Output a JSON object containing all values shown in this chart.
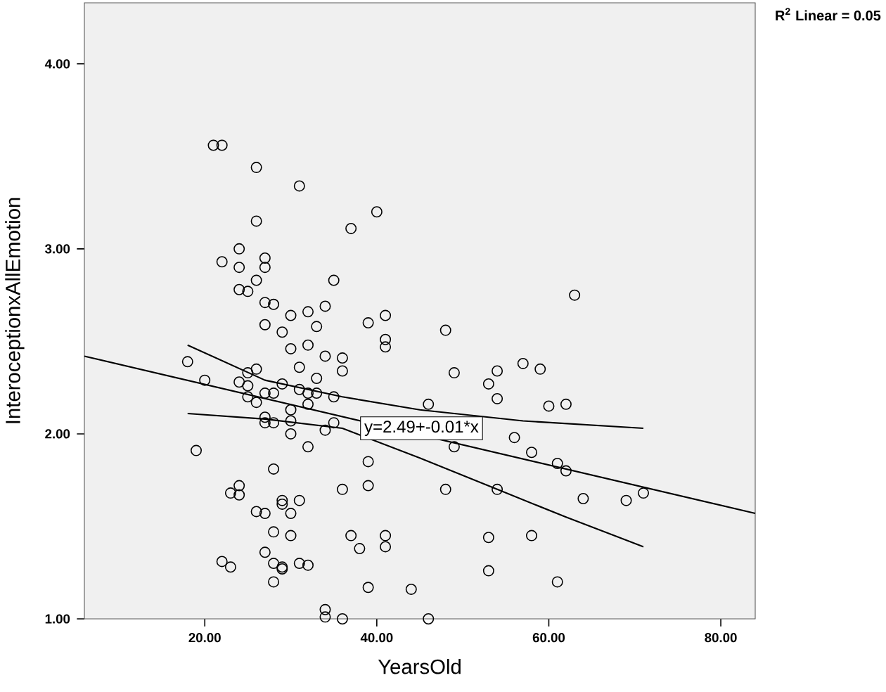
{
  "chart_data": {
    "type": "scatter",
    "xlabel": "YearsOld",
    "ylabel": "InteroceptionxAllEmotion",
    "xlim": [
      6,
      84
    ],
    "ylim": [
      1,
      4.33
    ],
    "xticks": [
      {
        "value": 20,
        "label": "20.00"
      },
      {
        "value": 40,
        "label": "40.00"
      },
      {
        "value": 60,
        "label": "60.00"
      },
      {
        "value": 80,
        "label": "80.00"
      }
    ],
    "yticks": [
      {
        "value": 1,
        "label": "1.00"
      },
      {
        "value": 2,
        "label": "2.00"
      },
      {
        "value": 3,
        "label": "3.00"
      },
      {
        "value": 4,
        "label": "4.00"
      }
    ],
    "series": [
      {
        "marker": "circle",
        "color": "#000000",
        "x": [
          21,
          22,
          26,
          31,
          40,
          26,
          37,
          24,
          22,
          24,
          27,
          27,
          26,
          35,
          24,
          25,
          63,
          27,
          28,
          30,
          32,
          34,
          39,
          41,
          27,
          29,
          33,
          41,
          41,
          30,
          32,
          34,
          36,
          18,
          31,
          36,
          25,
          26,
          33,
          20,
          24,
          25,
          29,
          31,
          32,
          33,
          27,
          28,
          35,
          25,
          26,
          32,
          30,
          27,
          27,
          28,
          30,
          35,
          34,
          30,
          19,
          32,
          39,
          28,
          24,
          23,
          24,
          36,
          39,
          29,
          29,
          31,
          26,
          27,
          30,
          28,
          30,
          37,
          38,
          41,
          41,
          27,
          22,
          23,
          28,
          29,
          29,
          31,
          32,
          28,
          39,
          34,
          34,
          36,
          46,
          48,
          49,
          54,
          57,
          59,
          53,
          54,
          46,
          60,
          62,
          56,
          49,
          58,
          61,
          62,
          48,
          54,
          64,
          69,
          71,
          53,
          58,
          53,
          61,
          44
        ],
        "values": [
          3.56,
          3.56,
          3.44,
          3.34,
          3.2,
          3.15,
          3.11,
          3.0,
          2.93,
          2.9,
          2.95,
          2.9,
          2.83,
          2.83,
          2.78,
          2.77,
          2.75,
          2.71,
          2.7,
          2.64,
          2.66,
          2.69,
          2.6,
          2.64,
          2.59,
          2.55,
          2.58,
          2.51,
          2.47,
          2.46,
          2.48,
          2.42,
          2.41,
          2.39,
          2.36,
          2.34,
          2.33,
          2.35,
          2.3,
          2.29,
          2.28,
          2.26,
          2.27,
          2.24,
          2.22,
          2.22,
          2.22,
          2.22,
          2.2,
          2.2,
          2.17,
          2.16,
          2.13,
          2.09,
          2.06,
          2.06,
          2.07,
          2.06,
          2.02,
          2.0,
          1.91,
          1.93,
          1.85,
          1.81,
          1.72,
          1.68,
          1.67,
          1.7,
          1.72,
          1.64,
          1.62,
          1.64,
          1.58,
          1.57,
          1.57,
          1.47,
          1.45,
          1.45,
          1.38,
          1.45,
          1.39,
          1.36,
          1.31,
          1.28,
          1.3,
          1.28,
          1.27,
          1.3,
          1.29,
          1.2,
          1.17,
          1.05,
          1.01,
          1.0,
          1.0,
          2.56,
          2.33,
          2.34,
          2.38,
          2.35,
          2.27,
          2.19,
          2.16,
          2.15,
          2.16,
          1.98,
          1.93,
          1.9,
          1.84,
          1.8,
          1.7,
          1.7,
          1.65,
          1.64,
          1.68,
          1.44,
          1.45,
          1.26,
          1.2,
          1.16
        ]
      },
      {
        "type": "line",
        "color": "#000000",
        "x": [
          6,
          84
        ],
        "values": [
          2.42,
          1.57
        ]
      },
      {
        "type": "line",
        "color": "#000000",
        "x": [
          18,
          27,
          36,
          45,
          57,
          71
        ],
        "values": [
          2.48,
          2.29,
          2.2,
          2.13,
          2.07,
          2.03
        ]
      },
      {
        "type": "line",
        "color": "#000000",
        "x": [
          18,
          27,
          36,
          45,
          54,
          62,
          71
        ],
        "values": [
          2.11,
          2.08,
          2.03,
          1.87,
          1.7,
          1.55,
          1.39
        ]
      }
    ],
    "annotations": [
      {
        "text": "y=2.49+-0.01*x",
        "x": 45.2,
        "y": 2.03
      },
      "R$^{2}$ Linear = 0.05"
    ]
  }
}
